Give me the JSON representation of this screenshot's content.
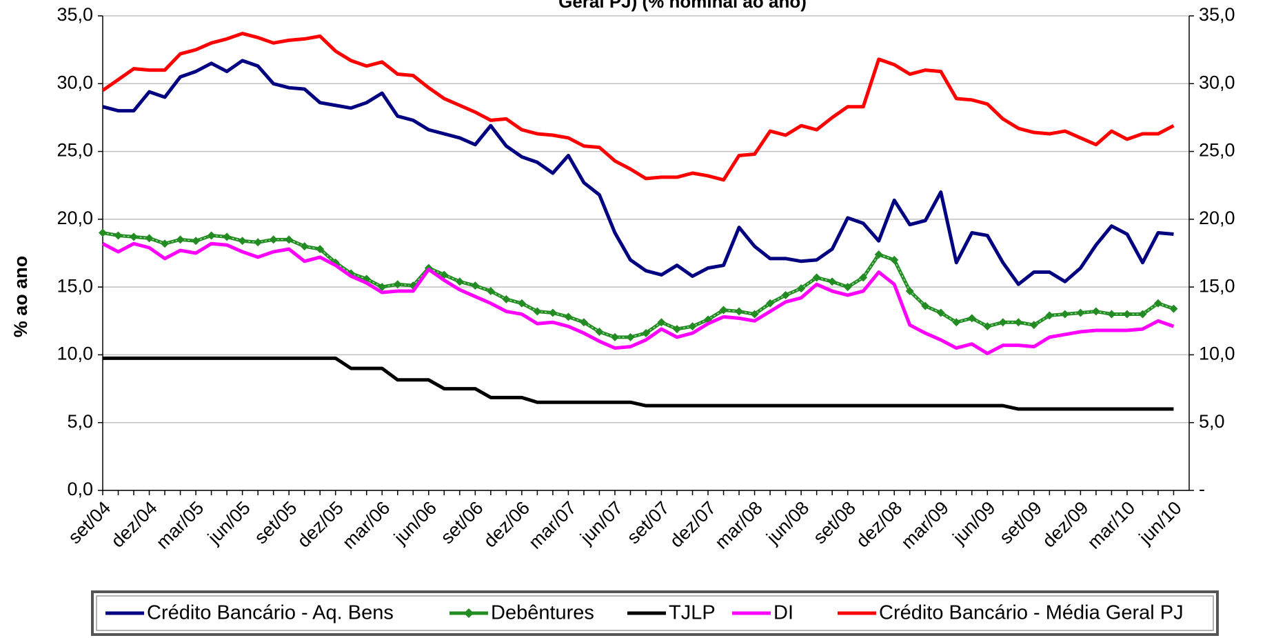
{
  "chart_data": {
    "type": "line",
    "title": "Geral PJ)  (% nominal ao ano)",
    "y_label": "% ao ano",
    "categories": [
      "set/04",
      null,
      null,
      "dez/04",
      null,
      null,
      "mar/05",
      null,
      null,
      "jun/05",
      null,
      null,
      "set/05",
      null,
      null,
      "dez/05",
      null,
      null,
      "mar/06",
      null,
      null,
      "jun/06",
      null,
      null,
      "set/06",
      null,
      null,
      "dez/06",
      null,
      null,
      "mar/07",
      null,
      null,
      "jun/07",
      null,
      null,
      "set/07",
      null,
      null,
      "dez/07",
      null,
      null,
      "mar/08",
      null,
      null,
      "jun/08",
      null,
      null,
      "set/08",
      null,
      null,
      "dez/08",
      null,
      null,
      "mar/09",
      null,
      null,
      "jun/09",
      null,
      null,
      "set/09",
      null,
      null,
      "dez/09",
      null,
      null,
      "mar/10",
      null,
      null,
      "jun/10"
    ],
    "series": [
      {
        "name": "Crédito Bancário - Aq. Bens",
        "color": "#000080",
        "values": [
          28.3,
          28.0,
          28.0,
          29.4,
          29.0,
          30.5,
          30.9,
          31.5,
          30.9,
          31.7,
          31.3,
          30.0,
          29.7,
          29.6,
          28.6,
          28.4,
          28.2,
          28.6,
          29.3,
          27.6,
          27.3,
          26.6,
          26.3,
          26.0,
          25.5,
          26.9,
          25.4,
          24.6,
          24.2,
          23.4,
          24.7,
          22.7,
          21.8,
          19.0,
          17.0,
          16.2,
          15.9,
          16.6,
          15.8,
          16.4,
          16.6,
          19.4,
          18.0,
          17.1,
          17.1,
          16.9,
          17.0,
          17.8,
          20.1,
          19.7,
          18.4,
          21.4,
          19.6,
          19.9,
          22.0,
          16.8,
          19.0,
          18.8,
          16.8,
          15.2,
          16.1,
          16.1,
          15.4,
          16.4,
          18.1,
          19.5,
          18.9,
          16.8,
          19.0,
          18.9
        ]
      },
      {
        "name": "Debêntures",
        "color": "#228b22",
        "marker": "diamond",
        "values": [
          19.0,
          18.8,
          18.7,
          18.6,
          18.2,
          18.5,
          18.4,
          18.8,
          18.7,
          18.4,
          18.3,
          18.5,
          18.5,
          18.0,
          17.8,
          16.8,
          16.0,
          15.6,
          15.0,
          15.2,
          15.1,
          16.4,
          15.9,
          15.4,
          15.1,
          14.7,
          14.1,
          13.8,
          13.2,
          13.1,
          12.8,
          12.4,
          11.7,
          11.3,
          11.3,
          11.6,
          12.4,
          11.9,
          12.1,
          12.6,
          13.3,
          13.2,
          13.0,
          13.8,
          14.4,
          14.9,
          15.7,
          15.4,
          15.0,
          15.7,
          17.4,
          17.0,
          14.7,
          13.6,
          13.1,
          12.4,
          12.7,
          12.1,
          12.4,
          12.4,
          12.2,
          12.9,
          13.0,
          13.1,
          13.2,
          13.0,
          13.0,
          13.0,
          13.8,
          13.4
        ]
      },
      {
        "name": "TJLP",
        "color": "#000000",
        "values": [
          9.75,
          9.75,
          9.75,
          9.75,
          9.75,
          9.75,
          9.75,
          9.75,
          9.75,
          9.75,
          9.75,
          9.75,
          9.75,
          9.75,
          9.75,
          9.75,
          9.0,
          9.0,
          9.0,
          8.15,
          8.15,
          8.15,
          7.5,
          7.5,
          7.5,
          6.85,
          6.85,
          6.85,
          6.5,
          6.5,
          6.5,
          6.5,
          6.5,
          6.5,
          6.5,
          6.25,
          6.25,
          6.25,
          6.25,
          6.25,
          6.25,
          6.25,
          6.25,
          6.25,
          6.25,
          6.25,
          6.25,
          6.25,
          6.25,
          6.25,
          6.25,
          6.25,
          6.25,
          6.25,
          6.25,
          6.25,
          6.25,
          6.25,
          6.25,
          6.0,
          6.0,
          6.0,
          6.0,
          6.0,
          6.0,
          6.0,
          6.0,
          6.0,
          6.0,
          6.0
        ]
      },
      {
        "name": "DI",
        "color": "#ff00ff",
        "values": [
          18.2,
          17.6,
          18.2,
          17.9,
          17.1,
          17.7,
          17.5,
          18.2,
          18.1,
          17.6,
          17.2,
          17.6,
          17.8,
          16.9,
          17.2,
          16.6,
          15.8,
          15.3,
          14.6,
          14.7,
          14.7,
          16.3,
          15.5,
          14.8,
          14.3,
          13.8,
          13.2,
          13.0,
          12.3,
          12.4,
          12.1,
          11.6,
          11.0,
          10.5,
          10.6,
          11.1,
          11.9,
          11.3,
          11.6,
          12.3,
          12.8,
          12.7,
          12.5,
          13.2,
          13.9,
          14.2,
          15.2,
          14.7,
          14.4,
          14.7,
          16.1,
          15.2,
          12.2,
          11.6,
          11.1,
          10.5,
          10.8,
          10.1,
          10.7,
          10.7,
          10.6,
          11.3,
          11.5,
          11.7,
          11.8,
          11.8,
          11.8,
          11.9,
          12.5,
          12.1
        ]
      },
      {
        "name": "Crédito Bancário - Média Geral PJ",
        "color": "#ff0000",
        "values": [
          29.5,
          30.3,
          31.1,
          31.0,
          31.0,
          32.2,
          32.5,
          33.0,
          33.3,
          33.7,
          33.4,
          33.0,
          33.2,
          33.3,
          33.5,
          32.4,
          31.7,
          31.3,
          31.6,
          30.7,
          30.6,
          29.7,
          28.9,
          28.4,
          27.9,
          27.3,
          27.4,
          26.6,
          26.3,
          26.2,
          26.0,
          25.4,
          25.3,
          24.3,
          23.7,
          23.0,
          23.1,
          23.1,
          23.4,
          23.2,
          22.9,
          24.7,
          24.8,
          26.5,
          26.2,
          26.9,
          26.6,
          27.5,
          28.3,
          28.3,
          31.8,
          31.4,
          30.7,
          31.0,
          30.9,
          28.9,
          28.8,
          28.5,
          27.4,
          26.7,
          26.4,
          26.3,
          26.5,
          26.0,
          25.5,
          26.5,
          25.9,
          26.3,
          26.3,
          26.9
        ]
      }
    ],
    "ylim": [
      0,
      35
    ],
    "yticks": [
      {
        "value": 0,
        "label": "0,0"
      },
      {
        "value": 5,
        "label": "5,0"
      },
      {
        "value": 10,
        "label": "10,0"
      },
      {
        "value": 15,
        "label": "15,0"
      },
      {
        "value": 20,
        "label": "20,0"
      },
      {
        "value": 25,
        "label": "25,0"
      },
      {
        "value": 30,
        "label": "30,0"
      },
      {
        "value": 35,
        "label": "35,0"
      }
    ],
    "y2lim": [
      0,
      35
    ],
    "y2ticks": [
      {
        "value": 0,
        "label": "-"
      },
      {
        "value": 5,
        "label": "5,0"
      },
      {
        "value": 10,
        "label": "10,0"
      },
      {
        "value": 15,
        "label": "15,0"
      },
      {
        "value": 20,
        "label": "20,0"
      },
      {
        "value": 25,
        "label": "25,0"
      },
      {
        "value": 30,
        "label": "30,0"
      },
      {
        "value": 35,
        "label": "35,0"
      }
    ],
    "grid": true,
    "legend": "bottom"
  }
}
